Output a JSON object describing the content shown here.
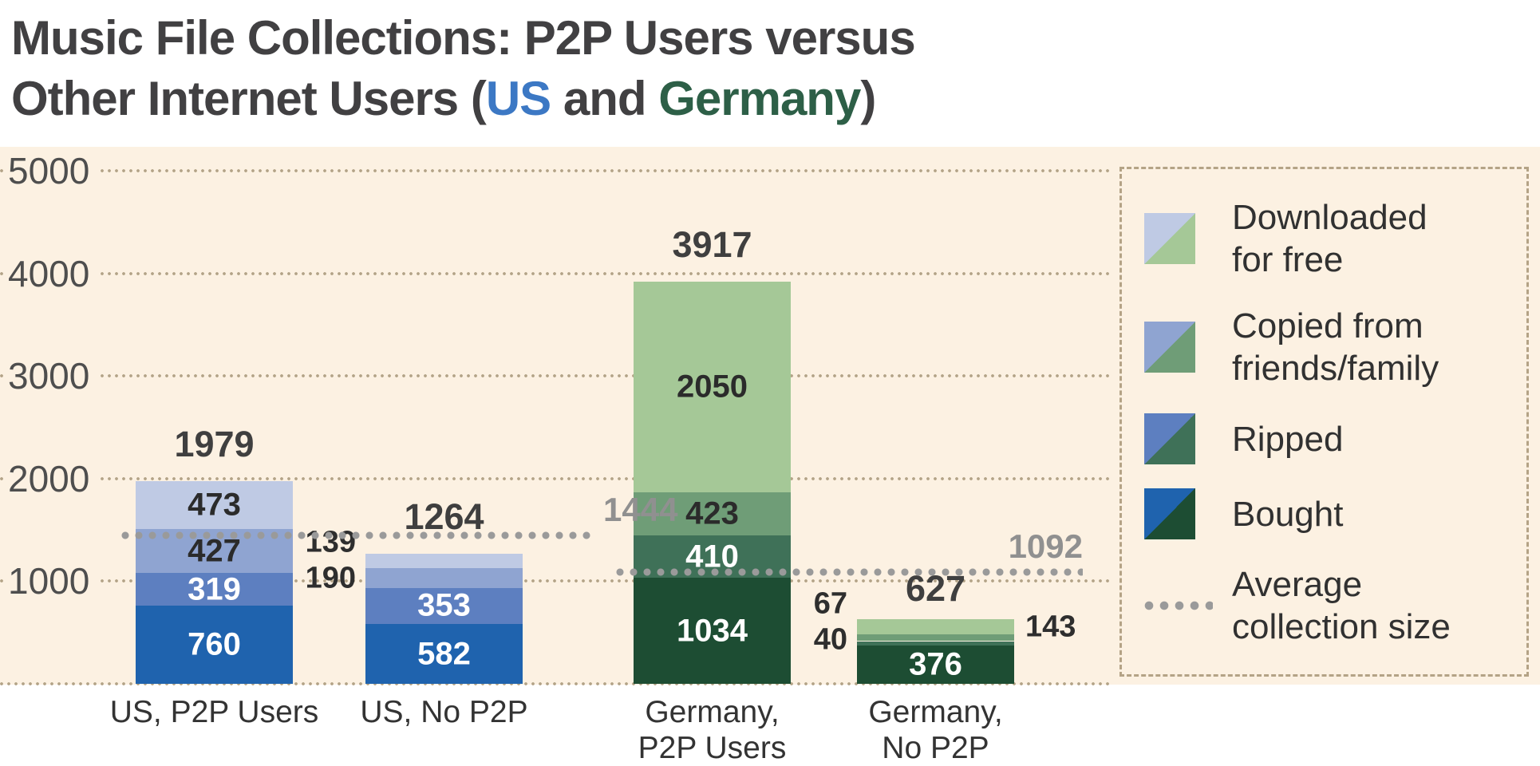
{
  "title": {
    "line1": "Music File Collections: P2P Users versus",
    "line2_prefix": "Other Internet Users (",
    "line2_us": "US",
    "line2_and": " and ",
    "line2_germany": "Germany",
    "line2_close": ")"
  },
  "colors": {
    "heading": "#414042",
    "us_title": "#3c78c4",
    "germany_title": "#2d5f47",
    "background_band": "#fcf1e2",
    "grid_dot": "#b3a387",
    "average_dot": "#9a9a9a",
    "us_palette": {
      "bought": "#1f63ae",
      "ripped": "#5d7fc0",
      "copied": "#8fa4d1",
      "downloaded": "#bfcae4"
    },
    "germany_palette": {
      "bought": "#1d4d33",
      "ripped": "#3f7158",
      "copied": "#6f9d77",
      "downloaded": "#a5c897"
    }
  },
  "chart_data": {
    "type": "bar",
    "stacked": true,
    "ylim": [
      0,
      5000
    ],
    "yticks": [
      5000,
      4000,
      3000,
      2000,
      1000
    ],
    "grid": "dotted-horizontal",
    "legend_position": "right",
    "series_order_bottom_to_top": [
      "Bought",
      "Ripped",
      "Copied from friends/family",
      "Downloaded for free"
    ],
    "bars": [
      {
        "category_lines": [
          "US, P2P Users"
        ],
        "group": "us",
        "total": 1979,
        "total_dy": 0,
        "segments": [
          {
            "name": "Bought",
            "value": 760,
            "label_pos": "inside",
            "text": "light"
          },
          {
            "name": "Ripped",
            "value": 319,
            "label_pos": "inside",
            "text": "light"
          },
          {
            "name": "Copied from friends/family",
            "value": 427,
            "label_pos": "inside",
            "text": "dark"
          },
          {
            "name": "Downloaded for free",
            "value": 473,
            "label_pos": "inside",
            "text": "dark"
          }
        ]
      },
      {
        "category_lines": [
          "US, No P2P"
        ],
        "group": "us",
        "total": 1264,
        "total_dy": 0,
        "segments": [
          {
            "name": "Bought",
            "value": 582,
            "label_pos": "inside",
            "text": "light"
          },
          {
            "name": "Ripped",
            "value": 353,
            "label_pos": "inside",
            "text": "light"
          },
          {
            "name": "Copied from friends/family",
            "value": 190,
            "label_pos": "left",
            "dy": 0
          },
          {
            "name": "Downloaded for free",
            "value": 139,
            "label_pos": "left",
            "dy": -23
          }
        ]
      },
      {
        "category_lines": [
          "Germany,",
          "P2P Users"
        ],
        "group": "germany",
        "total": 3917,
        "total_dy": 0,
        "segments": [
          {
            "name": "Bought",
            "value": 1034,
            "label_pos": "inside",
            "text": "light"
          },
          {
            "name": "Ripped",
            "value": 410,
            "label_pos": "inside",
            "text": "light"
          },
          {
            "name": "Copied from friends/family",
            "value": 423,
            "label_pos": "inside",
            "text": "dark"
          },
          {
            "name": "Downloaded for free",
            "value": 2050,
            "label_pos": "inside",
            "text": "dark"
          }
        ]
      },
      {
        "category_lines": [
          "Germany,",
          "No P2P"
        ],
        "group": "germany",
        "total": 627,
        "total_dy": 8,
        "segments": [
          {
            "name": "Bought",
            "value": 376,
            "label_pos": "inside",
            "text": "light"
          },
          {
            "name": "Ripped",
            "value": 40,
            "label_pos": "left",
            "dy": -4
          },
          {
            "name": "Copied from friends/family",
            "value": 67,
            "label_pos": "left",
            "dy": -42
          },
          {
            "name": "Downloaded for free",
            "value": 143,
            "label_pos": "right",
            "dy": 0
          }
        ]
      }
    ],
    "averages": [
      {
        "group": "us",
        "value": 1444
      },
      {
        "group": "germany",
        "value": 1092
      }
    ]
  },
  "legend": {
    "items": [
      {
        "key": "downloaded",
        "lines": [
          "Downloaded",
          "for free"
        ],
        "swatch": "split"
      },
      {
        "key": "copied",
        "lines": [
          "Copied from",
          "friends/family"
        ],
        "swatch": "split"
      },
      {
        "key": "ripped",
        "lines": [
          "Ripped"
        ],
        "swatch": "split"
      },
      {
        "key": "bought",
        "lines": [
          "Bought"
        ],
        "swatch": "split"
      },
      {
        "key": "average",
        "lines": [
          "Average",
          "collection size"
        ],
        "swatch": "dotted"
      }
    ]
  }
}
